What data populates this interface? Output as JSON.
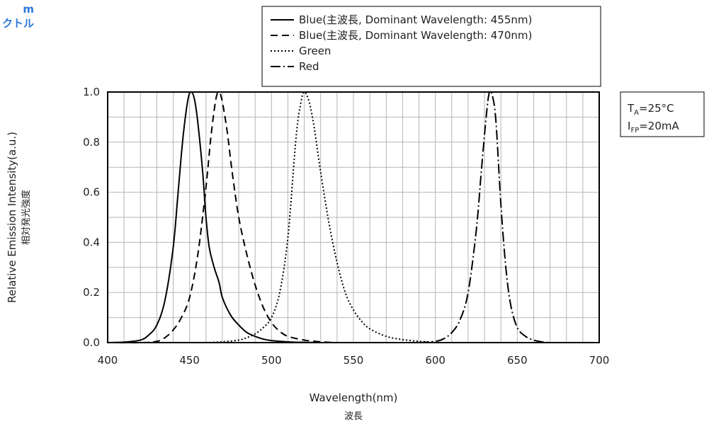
{
  "corner_text": {
    "line1": "m",
    "line2": "クトル"
  },
  "conditions": {
    "ta_symbol": "T",
    "ta_sub": "A",
    "ta_value": "=25°C",
    "ifp_symbol": "I",
    "ifp_sub": "FP",
    "ifp_value": "=20mA"
  },
  "chart_data": {
    "type": "line",
    "xlabel": "Wavelength(nm)",
    "xlabel_jp": "波長",
    "ylabel": "Relative Emission Intensity(a.u.)",
    "ylabel_jp": "相対発光強度",
    "xlim": [
      400,
      700
    ],
    "ylim": [
      0,
      1.0
    ],
    "xticks": [
      "400",
      "450",
      "500",
      "550",
      "600",
      "650",
      "700"
    ],
    "yticks": [
      "0.0",
      "0.2",
      "0.4",
      "0.6",
      "0.8",
      "1.0"
    ],
    "grid": true,
    "legend_position": "top",
    "series": [
      {
        "name": "Blue(主波長, Dominant Wavelength: 455nm)",
        "style": "solid",
        "color": "#000000",
        "points": [
          [
            400,
            0
          ],
          [
            410,
            0.002
          ],
          [
            420,
            0.01
          ],
          [
            425,
            0.03
          ],
          [
            430,
            0.07
          ],
          [
            435,
            0.17
          ],
          [
            440,
            0.38
          ],
          [
            443,
            0.6
          ],
          [
            446,
            0.82
          ],
          [
            449,
            0.97
          ],
          [
            451,
            1.0
          ],
          [
            453,
            0.97
          ],
          [
            455,
            0.88
          ],
          [
            458,
            0.68
          ],
          [
            460,
            0.5
          ],
          [
            462,
            0.38
          ],
          [
            465,
            0.3
          ],
          [
            468,
            0.24
          ],
          [
            470,
            0.18
          ],
          [
            475,
            0.11
          ],
          [
            480,
            0.07
          ],
          [
            485,
            0.04
          ],
          [
            490,
            0.025
          ],
          [
            495,
            0.014
          ],
          [
            500,
            0.008
          ],
          [
            510,
            0.003
          ],
          [
            520,
            0.001
          ],
          [
            530,
            0
          ]
        ]
      },
      {
        "name": "Blue(主波長, Dominant Wavelength: 470nm)",
        "style": "dashed",
        "color": "#000000",
        "points": [
          [
            400,
            0
          ],
          [
            420,
            0
          ],
          [
            430,
            0.005
          ],
          [
            435,
            0.02
          ],
          [
            440,
            0.05
          ],
          [
            445,
            0.1
          ],
          [
            450,
            0.18
          ],
          [
            455,
            0.35
          ],
          [
            460,
            0.62
          ],
          [
            463,
            0.82
          ],
          [
            466,
            0.97
          ],
          [
            468,
            1.0
          ],
          [
            470,
            0.96
          ],
          [
            473,
            0.84
          ],
          [
            476,
            0.68
          ],
          [
            480,
            0.5
          ],
          [
            485,
            0.35
          ],
          [
            490,
            0.23
          ],
          [
            495,
            0.14
          ],
          [
            500,
            0.08
          ],
          [
            505,
            0.045
          ],
          [
            510,
            0.025
          ],
          [
            520,
            0.01
          ],
          [
            530,
            0.003
          ],
          [
            540,
            0
          ]
        ]
      },
      {
        "name": "Green",
        "style": "dotted",
        "color": "#000000",
        "points": [
          [
            460,
            0
          ],
          [
            470,
            0.003
          ],
          [
            480,
            0.01
          ],
          [
            485,
            0.02
          ],
          [
            490,
            0.035
          ],
          [
            495,
            0.06
          ],
          [
            500,
            0.1
          ],
          [
            505,
            0.2
          ],
          [
            510,
            0.42
          ],
          [
            515,
            0.82
          ],
          [
            518,
            0.96
          ],
          [
            520,
            1.0
          ],
          [
            523,
            0.96
          ],
          [
            526,
            0.86
          ],
          [
            530,
            0.68
          ],
          [
            535,
            0.48
          ],
          [
            540,
            0.32
          ],
          [
            545,
            0.2
          ],
          [
            550,
            0.13
          ],
          [
            555,
            0.085
          ],
          [
            560,
            0.055
          ],
          [
            570,
            0.025
          ],
          [
            580,
            0.012
          ],
          [
            590,
            0.005
          ],
          [
            600,
            0
          ]
        ]
      },
      {
        "name": "Red",
        "style": "dashdot",
        "color": "#000000",
        "points": [
          [
            590,
            0
          ],
          [
            600,
            0.005
          ],
          [
            605,
            0.015
          ],
          [
            610,
            0.04
          ],
          [
            615,
            0.09
          ],
          [
            620,
            0.2
          ],
          [
            625,
            0.45
          ],
          [
            628,
            0.68
          ],
          [
            631,
            0.9
          ],
          [
            633,
            1.0
          ],
          [
            635,
            0.98
          ],
          [
            637,
            0.88
          ],
          [
            640,
            0.55
          ],
          [
            643,
            0.3
          ],
          [
            646,
            0.15
          ],
          [
            650,
            0.06
          ],
          [
            655,
            0.025
          ],
          [
            660,
            0.01
          ],
          [
            665,
            0.003
          ],
          [
            670,
            0
          ]
        ]
      }
    ]
  }
}
